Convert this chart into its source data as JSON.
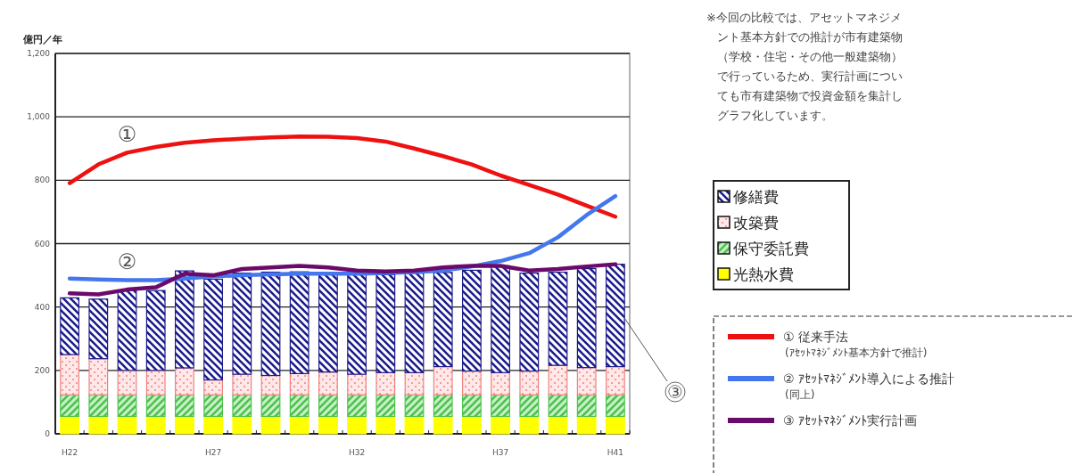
{
  "chart_data": {
    "type": "bar",
    "stacked": true,
    "ylabel": "億円／年",
    "categories": [
      "H22",
      null,
      null,
      null,
      null,
      "H27",
      null,
      null,
      null,
      null,
      "H32",
      null,
      null,
      null,
      null,
      "H37",
      null,
      null,
      null,
      "H41"
    ],
    "ylim": [
      0,
      1200
    ],
    "yticks": [
      0,
      {
        "value": 200,
        "label": "200"
      },
      {
        "value": 400,
        "label": "400"
      },
      {
        "value": 600,
        "label": "600"
      },
      {
        "value": 800,
        "label": "800"
      },
      {
        "value": 1000,
        "label": "1,000"
      },
      {
        "value": 1200,
        "label": "1,200"
      }
    ],
    "grid": "y",
    "legend": "right",
    "series": [
      {
        "name": "光熱水費",
        "color": "#ffff00",
        "values": [
          55,
          55,
          55,
          55,
          55,
          55,
          55,
          55,
          55,
          55,
          55,
          55,
          55,
          55,
          55,
          55,
          55,
          55,
          55,
          55
        ]
      },
      {
        "name": "保守委託費",
        "color": "#4cc24c",
        "values": [
          68,
          68,
          68,
          68,
          68,
          68,
          68,
          68,
          68,
          68,
          68,
          68,
          68,
          68,
          68,
          68,
          68,
          68,
          68,
          68
        ]
      },
      {
        "name": "改築費",
        "color": "#f08080",
        "values": [
          127,
          114,
          77,
          77,
          85,
          47,
          65,
          61,
          67,
          72,
          65,
          70,
          70,
          89,
          75,
          70,
          75,
          93,
          86,
          89
        ]
      },
      {
        "name": "修繕費",
        "color": "#1c1c8c",
        "values": [
          179,
          188,
          252,
          252,
          306,
          318,
          319,
          326,
          321,
          312,
          314,
          309,
          314,
          297,
          318,
          337,
          309,
          294,
          312,
          323
        ]
      },
      {
        "type": "line",
        "name": "① 従来手法\n(ｱｾｯﾄﾏﾈｼﾞﾒﾝﾄ基本方針で推計)",
        "color": "#ee1111",
        "values": [
          791,
          850,
          887,
          905,
          918,
          926,
          931,
          935,
          938,
          937,
          933,
          922,
          900,
          876,
          850,
          815,
          785,
          755,
          720,
          685
        ]
      },
      {
        "type": "line",
        "name": "② ｱｾｯﾄﾏﾈｼﾞﾒﾝﾄ導入による推計\n(同上)",
        "color": "#4477ee",
        "values": [
          490,
          487,
          485,
          485,
          490,
          497,
          500,
          503,
          505,
          505,
          505,
          507,
          510,
          515,
          528,
          545,
          570,
          620,
          690,
          750
        ]
      },
      {
        "type": "line",
        "name": "③ ｱｾｯﾄﾏﾈｼﾞﾒﾝﾄ実行計画",
        "color": "#6a0a6a",
        "values": [
          443,
          440,
          455,
          462,
          505,
          500,
          520,
          525,
          530,
          525,
          515,
          512,
          515,
          525,
          530,
          530,
          515,
          520,
          528,
          535
        ]
      }
    ],
    "annotations": [
      "※今回の比較では、アセットマネジメント基本方針での推計が市有建築物（学校・住宅・その他一般建築物）で行っているため、実行計画についても市有建築物で投資金額を集計しグラフ化しています。",
      "①",
      "②",
      "③"
    ]
  }
}
